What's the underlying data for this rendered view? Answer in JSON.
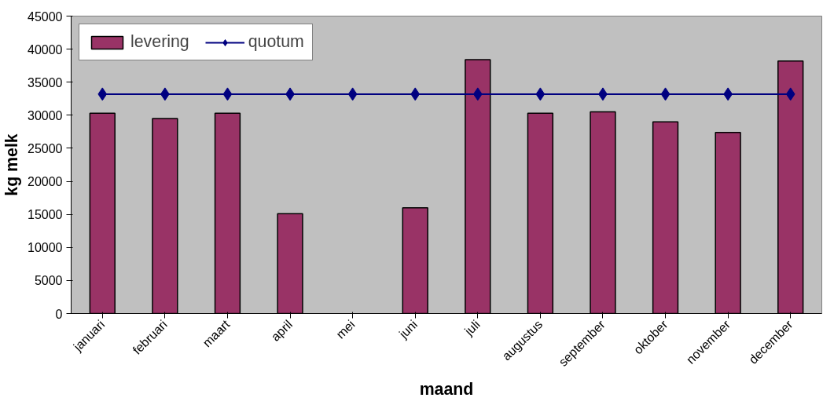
{
  "chart_data": {
    "type": "bar",
    "xlabel": "maand",
    "ylabel": "kg melk",
    "categories": [
      "januari",
      "februari",
      "maart",
      "april",
      "mei",
      "juni",
      "juli",
      "augustus",
      "september",
      "oktober",
      "november",
      "december"
    ],
    "ylim": [
      0,
      45000
    ],
    "yticks": [
      0,
      5000,
      10000,
      15000,
      20000,
      25000,
      30000,
      35000,
      40000,
      45000
    ],
    "grid": false,
    "legend": "top left",
    "marker": "diamond",
    "series": [
      {
        "name": "levering",
        "color": "#993366",
        "values": [
          30300,
          29500,
          30300,
          15100,
          null,
          16000,
          38400,
          30300,
          30500,
          29000,
          27400,
          38200
        ]
      },
      {
        "name": "quotum",
        "type": "line",
        "color": "#000080",
        "values": [
          33200,
          33200,
          33200,
          33200,
          33200,
          33200,
          33200,
          33200,
          33200,
          33200,
          33200,
          33200
        ]
      }
    ]
  }
}
